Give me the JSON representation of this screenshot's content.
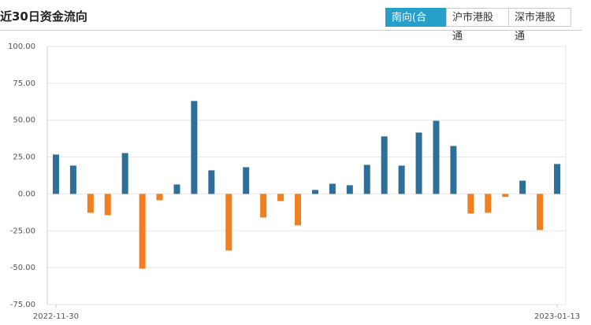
{
  "header": {
    "title": "近30日资金流向",
    "tabs": [
      "南向(合计)",
      "沪市港股通",
      "深市港股通"
    ],
    "active_tab": 0
  },
  "chart_data": {
    "type": "bar",
    "categories": [
      "2022-11-30",
      null,
      null,
      null,
      null,
      null,
      null,
      null,
      null,
      null,
      null,
      null,
      null,
      null,
      null,
      null,
      null,
      null,
      null,
      null,
      null,
      null,
      null,
      null,
      null,
      null,
      null,
      null,
      null,
      "2023-01-13"
    ],
    "values": [
      26.7,
      19.2,
      -12.8,
      -14.4,
      27.7,
      -50.7,
      -4.3,
      6.4,
      63,
      16,
      -38.4,
      18.1,
      -16,
      -4.8,
      -21.3,
      2.7,
      6.9,
      5.9,
      19.7,
      39,
      19.2,
      41.6,
      49.6,
      32.5,
      -13.3,
      -12.8,
      -2,
      9,
      -24.5,
      20.3
    ],
    "positive_color": "#2e6f9a",
    "negative_color": "#f07f1f",
    "ylim": [
      -75,
      100
    ],
    "yticks": [
      {
        "value": -75,
        "label": "-75.00"
      },
      {
        "value": -50,
        "label": "-50.00"
      },
      {
        "value": -25,
        "label": "-25.00"
      },
      {
        "value": 0,
        "label": "0.00"
      },
      {
        "value": 25,
        "label": "25.00"
      },
      {
        "value": 50,
        "label": "50.00"
      },
      {
        "value": 75,
        "label": "75.00"
      },
      {
        "value": 100,
        "label": "100.00"
      }
    ],
    "grid": true
  }
}
